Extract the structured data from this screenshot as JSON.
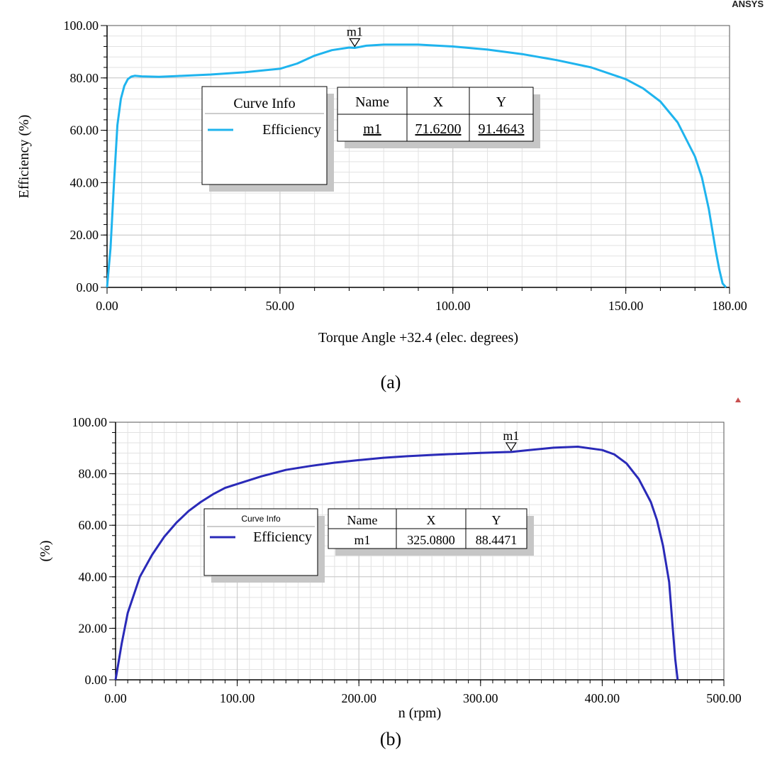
{
  "brand": "ANSYS",
  "chart_data": [
    {
      "type": "line",
      "caption": "(a)",
      "xlabel": "Torque Angle +32.4 (elec. degrees)",
      "ylabel": "Efficiency (%)",
      "xlim": [
        0,
        180
      ],
      "ylim": [
        0,
        100
      ],
      "x_ticks": [
        "0.00",
        "50.00",
        "100.00",
        "150.00",
        "180.00"
      ],
      "x_tick_values": [
        0,
        50,
        100,
        150,
        180
      ],
      "y_ticks": [
        "0.00",
        "20.00",
        "40.00",
        "60.00",
        "80.00",
        "100.00"
      ],
      "y_tick_values": [
        0,
        20,
        40,
        60,
        80,
        100
      ],
      "grid": true,
      "legend": {
        "title": "Curve Info",
        "entries": [
          "Efficiency"
        ]
      },
      "series": [
        {
          "name": "Efficiency",
          "color": "#1fb4ee",
          "x": [
            0,
            1,
            2,
            3,
            4,
            5,
            6,
            7,
            8,
            10,
            15,
            20,
            30,
            40,
            50,
            55,
            60,
            65,
            70,
            71.62,
            75,
            80,
            90,
            100,
            110,
            120,
            130,
            140,
            150,
            155,
            160,
            165,
            170,
            172,
            174,
            176,
            177,
            178,
            179
          ],
          "y": [
            0,
            15,
            40,
            62,
            72,
            77,
            79.5,
            80.5,
            80.8,
            80.6,
            80.4,
            80.7,
            81.3,
            82.2,
            83.5,
            85.5,
            88.5,
            90.6,
            91.6,
            91.4643,
            92.3,
            92.7,
            92.7,
            92.0,
            90.8,
            89.1,
            86.8,
            84.0,
            79.5,
            76,
            71,
            63,
            50,
            42,
            30,
            14,
            7,
            1.5,
            0
          ]
        }
      ],
      "marker": {
        "name": "m1",
        "x": 71.62,
        "y": 91.4643
      },
      "marker_table": {
        "headers": [
          "Name",
          "X",
          "Y"
        ],
        "rows": [
          [
            "m1",
            "71.6200",
            "91.4643"
          ]
        ]
      }
    },
    {
      "type": "line",
      "caption": "(b)",
      "xlabel": "n (rpm)",
      "ylabel": "(%)",
      "xlim": [
        0,
        500
      ],
      "ylim": [
        0,
        100
      ],
      "x_ticks": [
        "0.00",
        "100.00",
        "200.00",
        "300.00",
        "400.00",
        "500.00"
      ],
      "x_tick_values": [
        0,
        100,
        200,
        300,
        400,
        500
      ],
      "y_ticks": [
        "0.00",
        "20.00",
        "40.00",
        "60.00",
        "80.00",
        "100.00"
      ],
      "y_tick_values": [
        0,
        20,
        40,
        60,
        80,
        100
      ],
      "grid": true,
      "legend": {
        "title": "Curve Info",
        "entries": [
          "Efficiency"
        ]
      },
      "series": [
        {
          "name": "Efficiency",
          "color": "#2a2ab8",
          "x": [
            0,
            5,
            10,
            20,
            30,
            40,
            50,
            60,
            70,
            80,
            90,
            100,
            120,
            140,
            160,
            180,
            200,
            220,
            240,
            260,
            280,
            300,
            320,
            325.08,
            340,
            360,
            380,
            400,
            410,
            420,
            430,
            440,
            445,
            450,
            455,
            458,
            460,
            462
          ],
          "y": [
            0,
            14,
            26,
            40,
            48.5,
            55.5,
            61,
            65.5,
            69,
            72,
            74.5,
            76,
            79,
            81.5,
            83,
            84.3,
            85.3,
            86.2,
            86.8,
            87.3,
            87.7,
            88.1,
            88.4,
            88.4471,
            89.2,
            90.1,
            90.5,
            89.2,
            87.5,
            84,
            78,
            69,
            62,
            52,
            38,
            20,
            8,
            0
          ]
        }
      ],
      "marker": {
        "name": "m1",
        "x": 325.08,
        "y": 88.4471
      },
      "marker_table": {
        "headers": [
          "Name",
          "X",
          "Y"
        ],
        "rows": [
          [
            "m1",
            "325.0800",
            "88.4471"
          ]
        ]
      }
    }
  ]
}
